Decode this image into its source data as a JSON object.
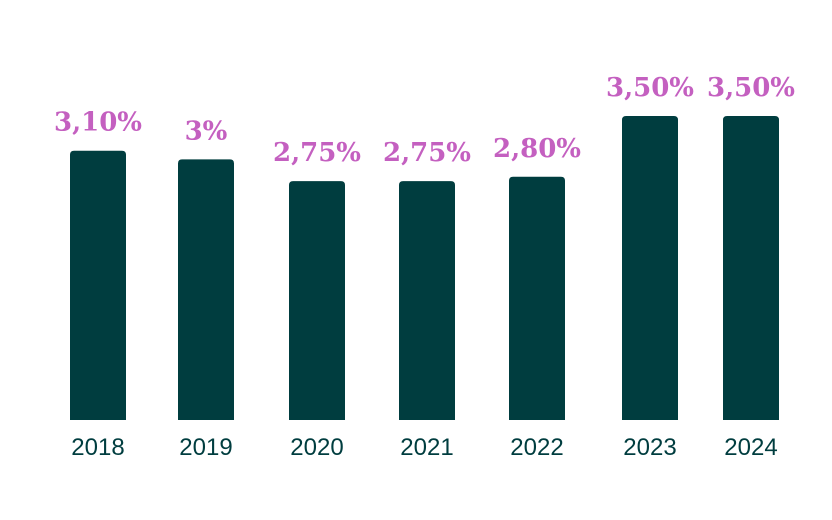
{
  "chart_data": {
    "type": "bar",
    "title": "",
    "xlabel": "",
    "ylabel": "",
    "categories": [
      "2018",
      "2019",
      "2020",
      "2021",
      "2022",
      "2023",
      "2024"
    ],
    "values": [
      3.1,
      3.0,
      2.75,
      2.75,
      2.8,
      3.5,
      3.5
    ],
    "value_labels": [
      "3,10%",
      "3%",
      "2,75%",
      "2,75%",
      "2,80%",
      "3,50%",
      "3,50%"
    ],
    "unit": "%",
    "ylim": [
      0,
      3.5
    ],
    "grid": false,
    "legend": "none"
  },
  "colors": {
    "bar": "#003d3f",
    "value_label": "#c460c0",
    "tick_label": "#003d3f",
    "background": "#ffffff"
  }
}
